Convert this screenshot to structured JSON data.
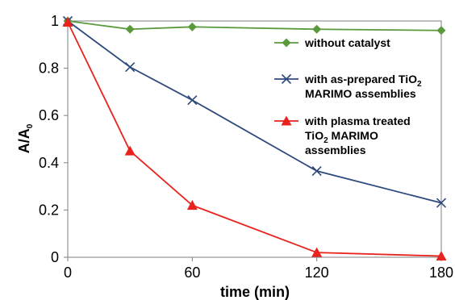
{
  "chart_data": {
    "type": "line",
    "xlabel": "time (min)",
    "ylabel": "A/A0",
    "ylabel_main": "A/A",
    "ylabel_sub": "0",
    "xlim": [
      0,
      180
    ],
    "ylim": [
      0,
      1
    ],
    "xticks": [
      "0",
      "60",
      "120",
      "180"
    ],
    "xtick_values": [
      0,
      60,
      120,
      180
    ],
    "yticks": [
      "0",
      "0.2",
      "0.4",
      "0.6",
      "0.8",
      "1"
    ],
    "ytick_values": [
      0,
      0.2,
      0.4,
      0.6,
      0.8,
      1
    ],
    "grid": false,
    "legend_position": "right",
    "series": [
      {
        "name": "without catalyst",
        "legend_lines": [
          [
            {
              "t": "without catalyst"
            }
          ]
        ],
        "color": "#5a9a3c",
        "marker": "diamond",
        "x": [
          0,
          30,
          60,
          120,
          180
        ],
        "y": [
          1.0,
          0.965,
          0.975,
          0.965,
          0.96
        ]
      },
      {
        "name": "with as-prepared TiO2 MARIMO assemblies",
        "legend_lines": [
          [
            {
              "t": "with as-prepared TiO"
            },
            {
              "t": "2",
              "sub": true
            }
          ],
          [
            {
              "t": "MARIMO assemblies"
            }
          ]
        ],
        "color": "#2e4a7d",
        "marker": "x",
        "x": [
          0,
          30,
          60,
          120,
          180
        ],
        "y": [
          1.0,
          0.805,
          0.665,
          0.365,
          0.23
        ]
      },
      {
        "name": "with plasma treated TiO2 MARIMO assemblies",
        "legend_lines": [
          [
            {
              "t": "with plasma treated"
            }
          ],
          [
            {
              "t": "TiO"
            },
            {
              "t": "2",
              "sub": true
            },
            {
              "t": " MARIMO"
            }
          ],
          [
            {
              "t": "assemblies"
            }
          ]
        ],
        "color": "#e8231e",
        "marker": "triangle",
        "x": [
          0,
          30,
          60,
          120,
          180
        ],
        "y": [
          0.995,
          0.45,
          0.22,
          0.02,
          0.005
        ]
      }
    ]
  }
}
